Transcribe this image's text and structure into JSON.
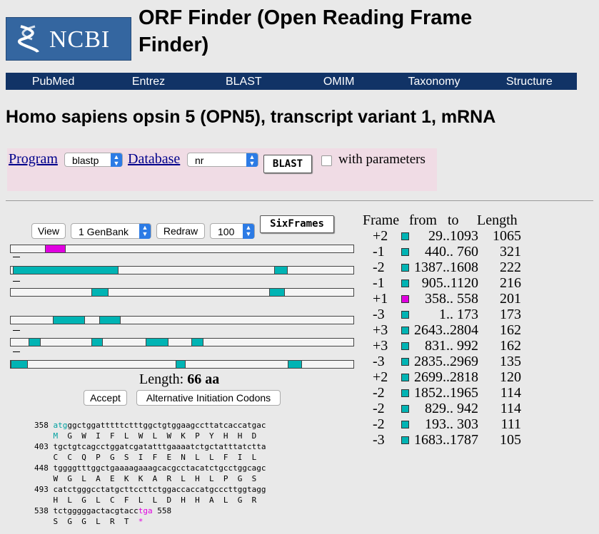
{
  "header": {
    "logo_text": "NCBI",
    "title": "ORF Finder (Open Reading Frame Finder)"
  },
  "nav": [
    "PubMed",
    "Entrez",
    "BLAST",
    "OMIM",
    "Taxonomy",
    "Structure"
  ],
  "page_title": "Homo sapiens opsin 5 (OPN5), transcript variant 1, mRNA",
  "blast_bar": {
    "program_link": "Program",
    "program_value": "blastp",
    "database_link": "Database",
    "database_value": "nr",
    "blast_button": "BLAST",
    "with_parameters_label": "with parameters",
    "with_parameters_checked": false
  },
  "viewer": {
    "view_button": "View",
    "view_select": "1 GenBank",
    "redraw_button": "Redraw",
    "zoom_select": "100",
    "sixframes_button": "SixFrames",
    "length_label": "Length:",
    "length_value": "66 aa",
    "accept_button": "Accept",
    "alt_codons_button": "Alternative Initiation Codons"
  },
  "colors": {
    "orf": "#00b4b4",
    "selected_orf": "#e000e0",
    "nav_bg": "#113366",
    "logo_bg": "#3466a0",
    "blast_bar_bg": "#f0dce5"
  },
  "sequence": [
    {
      "pos": "358",
      "nt": "atgggctggatttttctttggctgtggaagccttatcaccatgac",
      "aa": "M  G  W  I  F  L  W  L  W  K  P  Y  H  H  D"
    },
    {
      "pos": "403",
      "nt": "tgctgtcagcctggatcgatatttgaaaatctgctatttatctta",
      "aa": "C  C  Q  P  G  S  I  F  E  N  L  L  F  I  L"
    },
    {
      "pos": "448",
      "nt": "tggggtttggctgaaaagaaagcacgcctacatctgcctggcagc",
      "aa": "W  G  L  A  E  K  K  A  R  L  H  L  P  G  S"
    },
    {
      "pos": "493",
      "nt": "catctgggcctatgcttccttctggaccaccatgcccttggtagg",
      "aa": "H  L  G  L  C  F  L  L  D  H  H  A  L  G  R"
    },
    {
      "pos": "538",
      "nt": "tctgggggactacgtacc",
      "stop": "tga",
      "end": "558",
      "aa": "S  G  G  L  R  T  *"
    }
  ],
  "orf_table": {
    "headers": [
      "Frame",
      "from",
      "to",
      "Length"
    ],
    "rows": [
      {
        "frame": "+2",
        "range": "29..1093",
        "length": "1065",
        "selected": false
      },
      {
        "frame": "-1",
        "range": "440.. 760",
        "length": "321",
        "selected": false
      },
      {
        "frame": "-2",
        "range": "1387..1608",
        "length": "222",
        "selected": false
      },
      {
        "frame": "-1",
        "range": "905..1120",
        "length": "216",
        "selected": false
      },
      {
        "frame": "+1",
        "range": "358.. 558",
        "length": "201",
        "selected": true
      },
      {
        "frame": "-3",
        "range": "1.. 173",
        "length": "173",
        "selected": false
      },
      {
        "frame": "+3",
        "range": "2643..2804",
        "length": "162",
        "selected": false
      },
      {
        "frame": "+3",
        "range": "831.. 992",
        "length": "162",
        "selected": false
      },
      {
        "frame": "-3",
        "range": "2835..2969",
        "length": "135",
        "selected": false
      },
      {
        "frame": "+2",
        "range": "2699..2818",
        "length": "120",
        "selected": false
      },
      {
        "frame": "-2",
        "range": "1852..1965",
        "length": "114",
        "selected": false
      },
      {
        "frame": "-2",
        "range": "829.. 942",
        "length": "114",
        "selected": false
      },
      {
        "frame": "-2",
        "range": "193.. 303",
        "length": "111",
        "selected": false
      },
      {
        "frame": "-3",
        "range": "1683..1787",
        "length": "105",
        "selected": false
      }
    ]
  }
}
